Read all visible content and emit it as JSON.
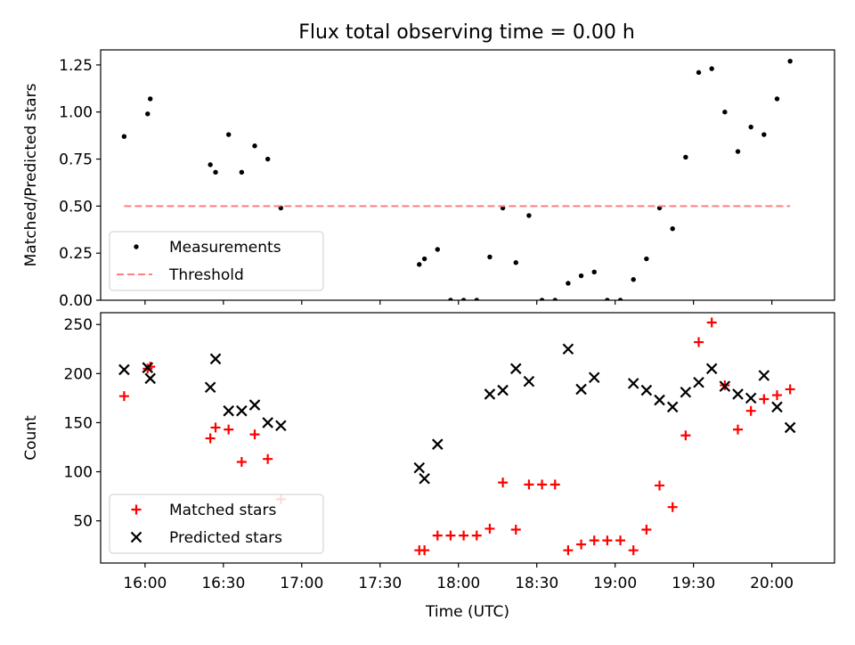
{
  "figure_title": "Flux total observing time = 0.00 h",
  "chart_data": [
    {
      "type": "scatter",
      "ylabel": "Matched/Predicted stars",
      "xlabel": "",
      "x_unit": "time (UTC)",
      "xlim": [
        "15:43",
        "20:24"
      ],
      "ylim": [
        0,
        1.33
      ],
      "yticks": [
        0,
        0.25,
        0.5,
        0.75,
        1.0,
        1.25
      ],
      "ytick_labels": [
        "0.00",
        "0.25",
        "0.50",
        "0.75",
        "1.00",
        "1.25"
      ],
      "legend_position": "lower-left",
      "series": [
        {
          "name": "Measurements",
          "marker": "dot",
          "color": "#000000",
          "points": [
            [
              "15:52",
              0.87
            ],
            [
              "16:01",
              0.99
            ],
            [
              "16:02",
              1.07
            ],
            [
              "16:25",
              0.72
            ],
            [
              "16:27",
              0.68
            ],
            [
              "16:32",
              0.88
            ],
            [
              "16:37",
              0.68
            ],
            [
              "16:42",
              0.82
            ],
            [
              "16:47",
              0.75
            ],
            [
              "16:52",
              0.49
            ],
            [
              "17:45",
              0.19
            ],
            [
              "17:47",
              0.22
            ],
            [
              "17:52",
              0.27
            ],
            [
              "17:57",
              0.0
            ],
            [
              "18:02",
              0.0
            ],
            [
              "18:07",
              0.0
            ],
            [
              "18:12",
              0.23
            ],
            [
              "18:17",
              0.49
            ],
            [
              "18:22",
              0.2
            ],
            [
              "18:27",
              0.45
            ],
            [
              "18:32",
              0.0
            ],
            [
              "18:37",
              0.0
            ],
            [
              "18:42",
              0.09
            ],
            [
              "18:47",
              0.13
            ],
            [
              "18:52",
              0.15
            ],
            [
              "18:57",
              0.0
            ],
            [
              "19:02",
              0.0
            ],
            [
              "19:07",
              0.11
            ],
            [
              "19:12",
              0.22
            ],
            [
              "19:17",
              0.49
            ],
            [
              "19:22",
              0.38
            ],
            [
              "19:27",
              0.76
            ],
            [
              "19:32",
              1.21
            ],
            [
              "19:37",
              1.23
            ],
            [
              "19:42",
              1.0
            ],
            [
              "19:47",
              0.79
            ],
            [
              "19:52",
              0.92
            ],
            [
              "19:57",
              0.88
            ],
            [
              "20:02",
              1.07
            ],
            [
              "20:07",
              1.27
            ]
          ]
        },
        {
          "name": "Threshold",
          "marker": "dashed-line",
          "color": "#ff7f7f",
          "points": [
            [
              "15:52",
              0.5
            ],
            [
              "20:07",
              0.5
            ]
          ]
        }
      ]
    },
    {
      "type": "scatter",
      "ylabel": "Count",
      "xlabel": "Time (UTC)",
      "xlim": [
        "15:43",
        "20:24"
      ],
      "ylim": [
        7,
        262
      ],
      "yticks": [
        50,
        100,
        150,
        200,
        250
      ],
      "ytick_labels": [
        "50",
        "100",
        "150",
        "200",
        "250"
      ],
      "xticks": [
        "16:00",
        "16:30",
        "17:00",
        "17:30",
        "18:00",
        "18:30",
        "19:00",
        "19:30",
        "20:00"
      ],
      "legend_position": "lower-left",
      "series": [
        {
          "name": "Matched stars",
          "marker": "plus",
          "color": "#ff0000",
          "points": [
            [
              "15:52",
              177
            ],
            [
              "16:01",
              205
            ],
            [
              "16:02",
              207
            ],
            [
              "16:25",
              134
            ],
            [
              "16:27",
              145
            ],
            [
              "16:32",
              143
            ],
            [
              "16:37",
              110
            ],
            [
              "16:42",
              138
            ],
            [
              "16:47",
              113
            ],
            [
              "16:52",
              72
            ],
            [
              "17:45",
              20
            ],
            [
              "17:47",
              20
            ],
            [
              "17:52",
              35
            ],
            [
              "17:57",
              35
            ],
            [
              "18:02",
              35
            ],
            [
              "18:07",
              35
            ],
            [
              "18:12",
              42
            ],
            [
              "18:17",
              89
            ],
            [
              "18:22",
              41
            ],
            [
              "18:27",
              87
            ],
            [
              "18:32",
              87
            ],
            [
              "18:37",
              87
            ],
            [
              "18:42",
              20
            ],
            [
              "18:47",
              26
            ],
            [
              "18:52",
              30
            ],
            [
              "18:57",
              30
            ],
            [
              "19:02",
              30
            ],
            [
              "19:07",
              20
            ],
            [
              "19:12",
              41
            ],
            [
              "19:17",
              86
            ],
            [
              "19:22",
              64
            ],
            [
              "19:27",
              137
            ],
            [
              "19:32",
              232
            ],
            [
              "19:37",
              252
            ],
            [
              "19:42",
              188
            ],
            [
              "19:47",
              143
            ],
            [
              "19:52",
              162
            ],
            [
              "19:57",
              174
            ],
            [
              "20:02",
              178
            ],
            [
              "20:07",
              184
            ]
          ]
        },
        {
          "name": "Predicted stars",
          "marker": "x",
          "color": "#000000",
          "points": [
            [
              "15:52",
              204
            ],
            [
              "16:01",
              206
            ],
            [
              "16:02",
              195
            ],
            [
              "16:25",
              186
            ],
            [
              "16:27",
              215
            ],
            [
              "16:32",
              162
            ],
            [
              "16:37",
              162
            ],
            [
              "16:42",
              168
            ],
            [
              "16:47",
              150
            ],
            [
              "16:52",
              147
            ],
            [
              "17:45",
              104
            ],
            [
              "17:47",
              93
            ],
            [
              "17:52",
              128
            ],
            [
              "18:12",
              179
            ],
            [
              "18:17",
              183
            ],
            [
              "18:22",
              205
            ],
            [
              "18:27",
              192
            ],
            [
              "18:42",
              225
            ],
            [
              "18:47",
              184
            ],
            [
              "18:52",
              196
            ],
            [
              "19:07",
              190
            ],
            [
              "19:12",
              183
            ],
            [
              "19:17",
              173
            ],
            [
              "19:22",
              166
            ],
            [
              "19:27",
              181
            ],
            [
              "19:32",
              191
            ],
            [
              "19:37",
              205
            ],
            [
              "19:42",
              187
            ],
            [
              "19:47",
              179
            ],
            [
              "19:52",
              175
            ],
            [
              "19:57",
              198
            ],
            [
              "20:02",
              166
            ],
            [
              "20:07",
              145
            ]
          ]
        }
      ]
    }
  ]
}
